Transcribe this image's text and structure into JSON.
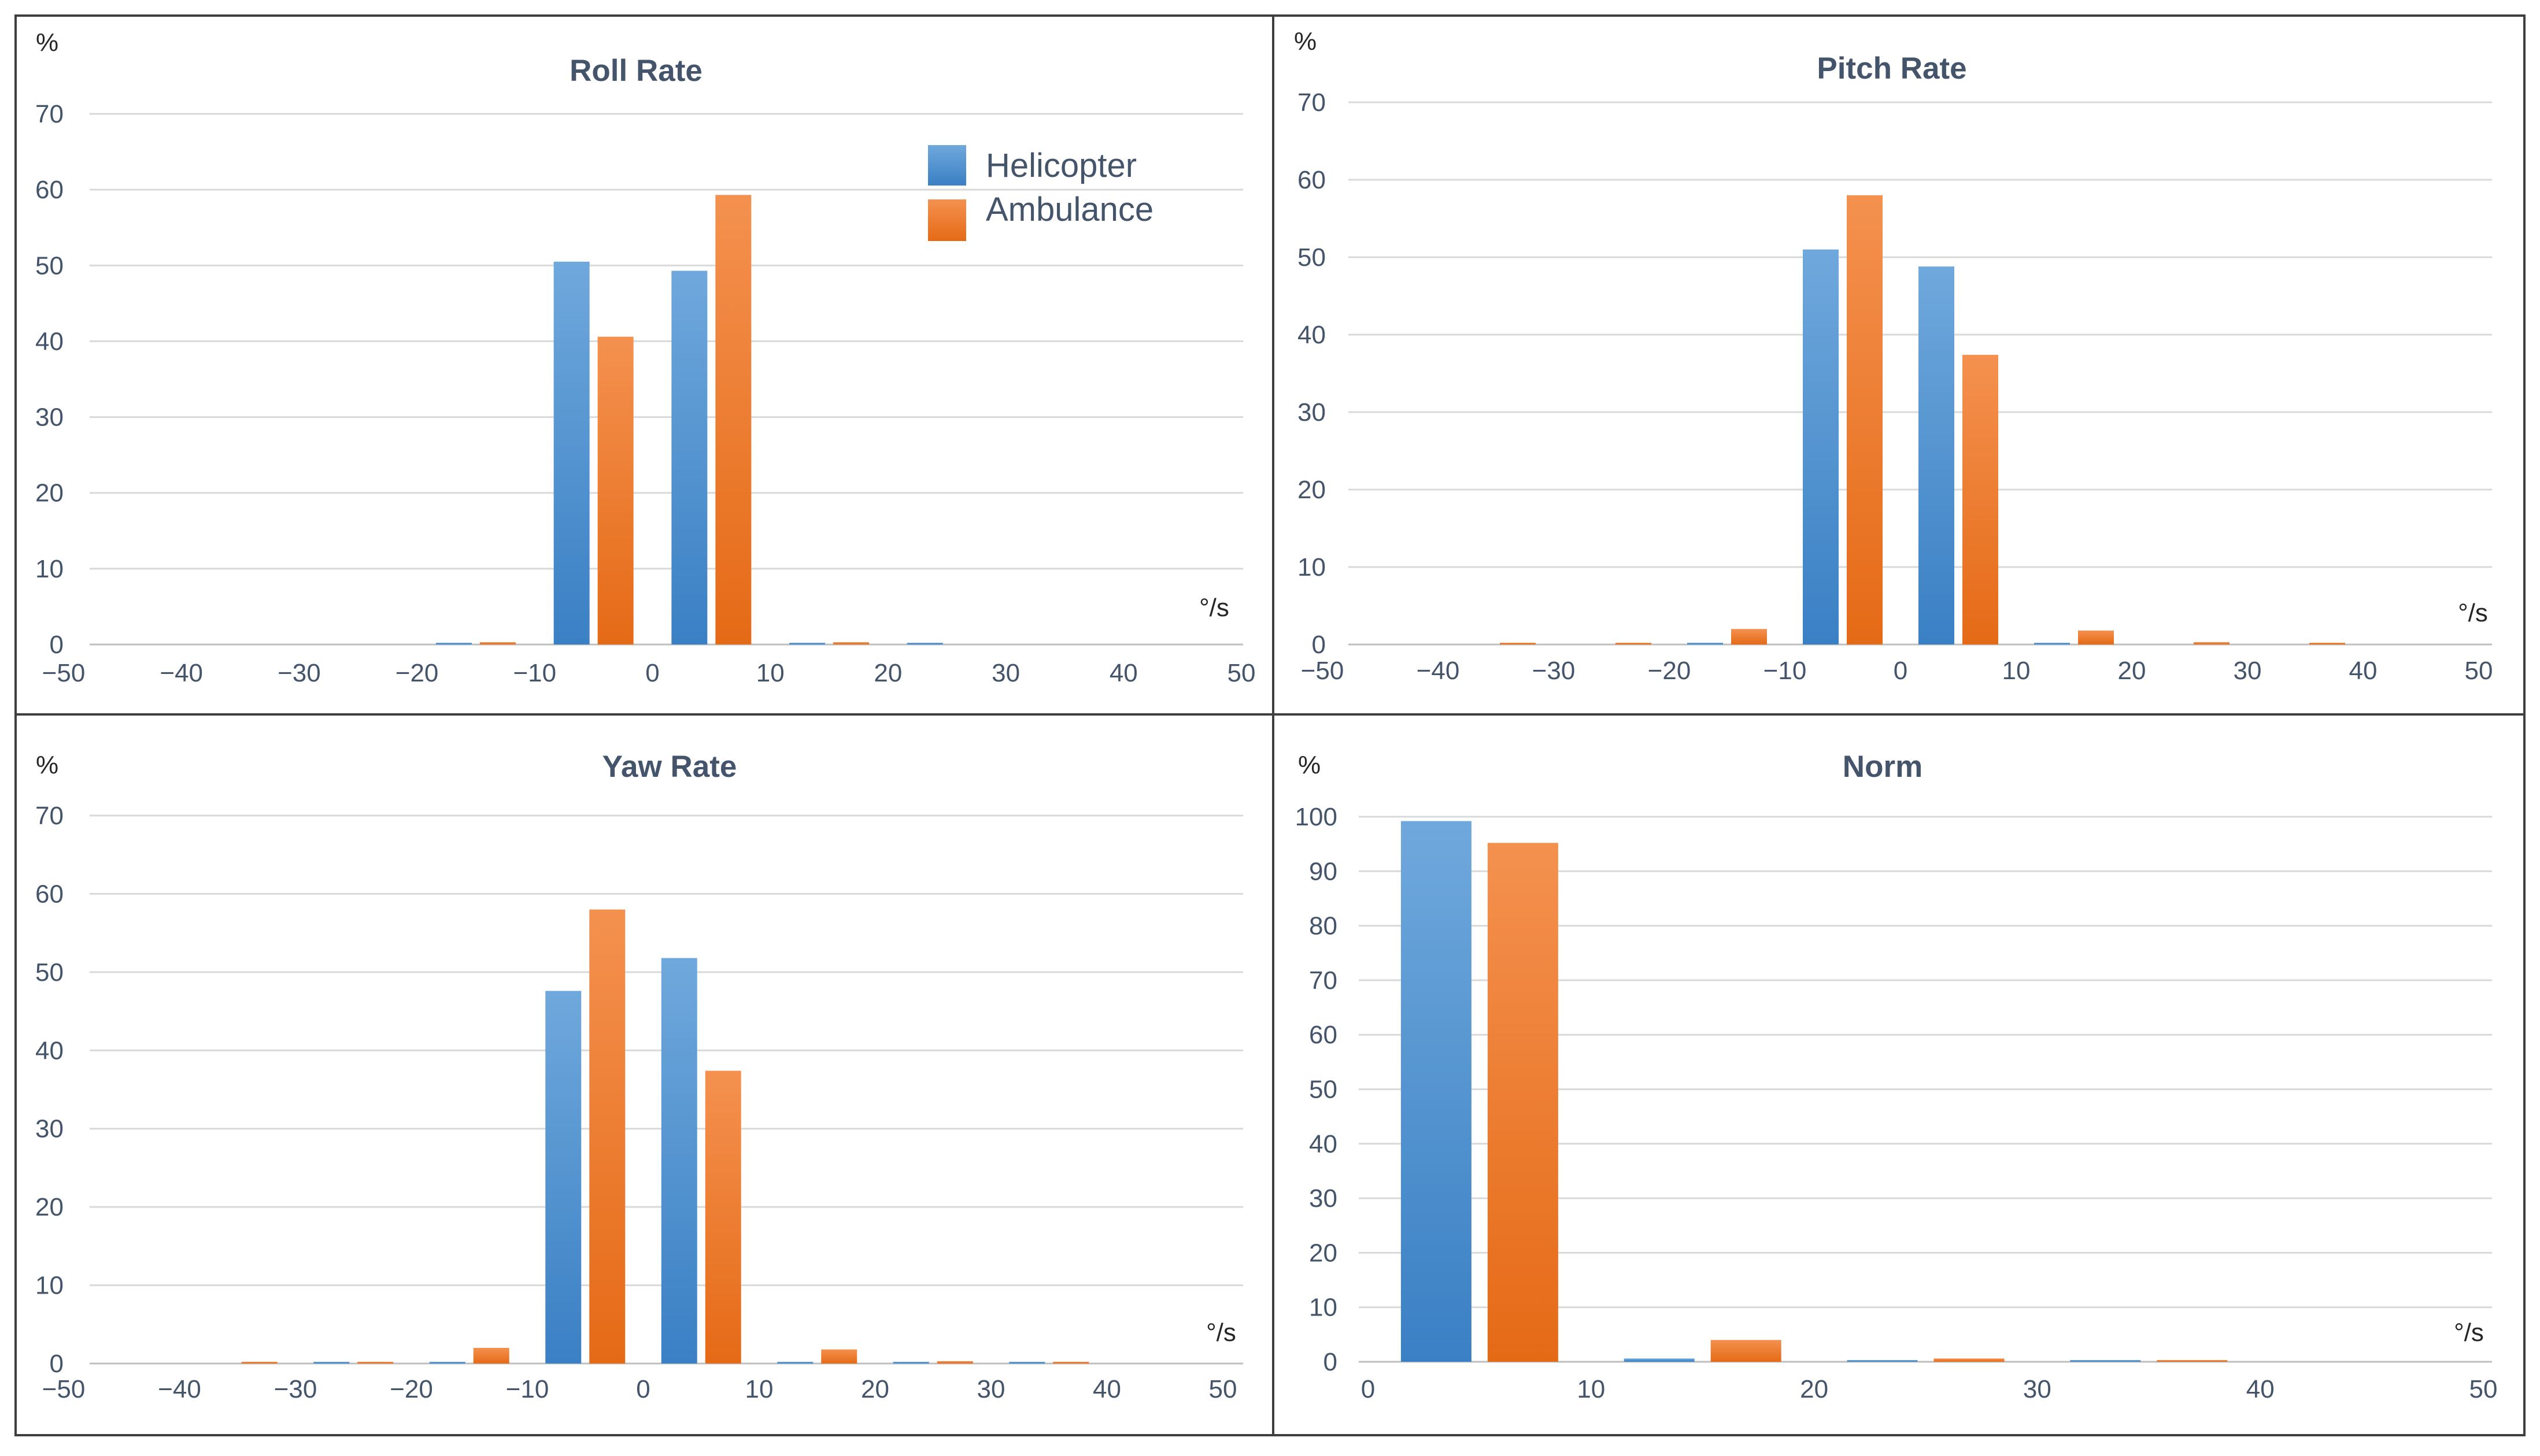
{
  "colors": {
    "helicopter": "#5b9bd5",
    "ambulance": "#ed7d31",
    "text": "#44546a"
  },
  "chart_data": [
    {
      "id": "roll",
      "type": "bar",
      "title": "Roll Rate",
      "ylabel": "%",
      "xlabel": "°/s",
      "xlim": [
        -50,
        50
      ],
      "ylim": [
        0,
        70
      ],
      "xticks": [
        "−50",
        "−40",
        "−30",
        "−20",
        "−10",
        "0",
        "10",
        "20",
        "30",
        "40",
        "50"
      ],
      "yticks": [
        "0",
        "10",
        "20",
        "30",
        "40",
        "50",
        "60",
        "70"
      ],
      "legend": {
        "position": "top-right",
        "entries": [
          "Helicopter",
          "Ambulance"
        ]
      },
      "bins": [
        -45,
        -35,
        -25,
        -15,
        -5,
        5,
        15,
        25,
        35,
        45
      ],
      "series": [
        {
          "name": "Helicopter",
          "values": [
            0,
            0,
            0,
            0.2,
            50.5,
            49.3,
            0.2,
            0.1,
            0,
            0
          ]
        },
        {
          "name": "Ambulance",
          "values": [
            0,
            0,
            0,
            0.3,
            40.6,
            59.3,
            0.3,
            0,
            0,
            0
          ]
        }
      ]
    },
    {
      "id": "pitch",
      "type": "bar",
      "title": "Pitch Rate",
      "ylabel": "%",
      "xlabel": "°/s",
      "xlim": [
        -50,
        50
      ],
      "ylim": [
        0,
        70
      ],
      "xticks": [
        "−50",
        "−40",
        "−30",
        "−20",
        "−10",
        "0",
        "10",
        "20",
        "30",
        "40",
        "50"
      ],
      "yticks": [
        "0",
        "10",
        "20",
        "30",
        "40",
        "50",
        "60",
        "70"
      ],
      "bins": [
        -45,
        -35,
        -25,
        -15,
        -5,
        5,
        15,
        25,
        35,
        45
      ],
      "series": [
        {
          "name": "Helicopter",
          "values": [
            0,
            0,
            0,
            0.1,
            51.0,
            48.8,
            0.1,
            0,
            0,
            0
          ]
        },
        {
          "name": "Ambulance",
          "values": [
            0,
            0.2,
            0.2,
            2.0,
            58.0,
            37.4,
            1.8,
            0.3,
            0.2,
            0
          ]
        }
      ]
    },
    {
      "id": "yaw",
      "type": "bar",
      "title": "Yaw Rate",
      "ylabel": "%",
      "xlabel": "°/s",
      "xlim": [
        -50,
        50
      ],
      "ylim": [
        0,
        70
      ],
      "xticks": [
        "−50",
        "−40",
        "−30",
        "−20",
        "−10",
        "0",
        "10",
        "20",
        "30",
        "40",
        "50"
      ],
      "yticks": [
        "0",
        "10",
        "20",
        "30",
        "40",
        "50",
        "60",
        "70"
      ],
      "bins": [
        -45,
        -35,
        -25,
        -15,
        -5,
        5,
        15,
        25,
        35,
        45
      ],
      "series": [
        {
          "name": "Helicopter",
          "values": [
            0,
            0,
            0.2,
            0.2,
            47.6,
            51.8,
            0.2,
            0.1,
            0.1,
            0
          ]
        },
        {
          "name": "Ambulance",
          "values": [
            0,
            0.2,
            0.2,
            2.0,
            58.0,
            37.4,
            1.8,
            0.3,
            0.2,
            0
          ]
        }
      ]
    },
    {
      "id": "norm",
      "type": "bar",
      "title": "Norm",
      "ylabel": "%",
      "xlabel": "°/s",
      "xlim": [
        0,
        50
      ],
      "ylim": [
        0,
        100
      ],
      "xticks": [
        "0",
        "10",
        "20",
        "30",
        "40",
        "50"
      ],
      "yticks": [
        "0",
        "10",
        "20",
        "30",
        "40",
        "50",
        "60",
        "70",
        "80",
        "90",
        "100"
      ],
      "bins": [
        5,
        15,
        25,
        35,
        45
      ],
      "series": [
        {
          "name": "Helicopter",
          "values": [
            99.2,
            0.6,
            0.1,
            0.1,
            0
          ]
        },
        {
          "name": "Ambulance",
          "values": [
            95.2,
            4.0,
            0.6,
            0.2,
            0
          ]
        }
      ]
    }
  ]
}
